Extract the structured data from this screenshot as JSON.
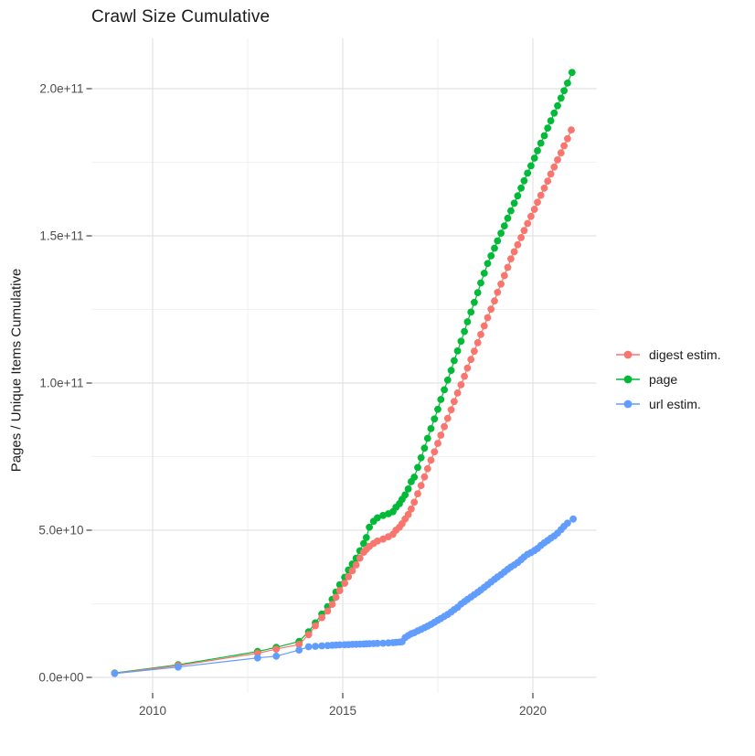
{
  "title": "Crawl Size Cumulative",
  "chart_data": {
    "type": "line",
    "title": "Crawl Size Cumulative",
    "xlabel": "",
    "ylabel": "Pages / Unique Items Cumulative",
    "x_unit": "year (decimal)",
    "y_unit": "count",
    "xlim": [
      2008.4,
      2021.7
    ],
    "ylim": [
      0,
      217000000000.0
    ],
    "grid": "major+minor",
    "legend_position": "right",
    "x_ticks": [
      {
        "value": 2010,
        "label": "2010"
      },
      {
        "value": 2015,
        "label": "2015"
      },
      {
        "value": 2020,
        "label": "2020"
      }
    ],
    "x_minor_ticks": [
      2012.5,
      2017.5
    ],
    "y_ticks": [
      {
        "value": 0,
        "label": "0.0e+00"
      },
      {
        "value": 50000000000.0,
        "label": "5.0e+10"
      },
      {
        "value": 100000000000.0,
        "label": "1.0e+11"
      },
      {
        "value": 150000000000.0,
        "label": "1.5e+11"
      },
      {
        "value": 200000000000.0,
        "label": "2.0e+11"
      }
    ],
    "y_minor_ticks": [
      25000000000.0,
      75000000000.0,
      125000000000.0,
      175000000000.0
    ],
    "series": [
      {
        "name": "digest estim.",
        "color": "#F8766D",
        "points": [
          [
            2009.0,
            1400000000.0
          ],
          [
            2010.67,
            4000000000.0
          ],
          [
            2012.76,
            8200000000.0
          ],
          [
            2013.25,
            9600000000.0
          ],
          [
            2013.85,
            11200000000.0
          ],
          [
            2014.1,
            14500000000.0
          ],
          [
            2014.28,
            17500000000.0
          ],
          [
            2014.45,
            20300000000.0
          ],
          [
            2014.6,
            22500000000.0
          ],
          [
            2014.72,
            24800000000.0
          ],
          [
            2014.82,
            27200000000.0
          ],
          [
            2014.92,
            29500000000.0
          ],
          [
            2015.05,
            32000000000.0
          ],
          [
            2015.15,
            34200000000.0
          ],
          [
            2015.25,
            36200000000.0
          ],
          [
            2015.35,
            38200000000.0
          ],
          [
            2015.45,
            40500000000.0
          ],
          [
            2015.55,
            42500000000.0
          ],
          [
            2015.62,
            43500000000.0
          ],
          [
            2015.7,
            44500000000.0
          ],
          [
            2015.81,
            45500000000.0
          ],
          [
            2015.91,
            46300000000.0
          ],
          [
            2016.06,
            47000000000.0
          ],
          [
            2016.2,
            47800000000.0
          ],
          [
            2016.32,
            48600000000.0
          ],
          [
            2016.4,
            50000000000.0
          ],
          [
            2016.49,
            51000000000.0
          ],
          [
            2016.56,
            52200000000.0
          ],
          [
            2016.64,
            53800000000.0
          ],
          [
            2016.72,
            55300000000.0
          ],
          [
            2016.8,
            57200000000.0
          ],
          [
            2016.88,
            59500000000.0
          ],
          [
            2016.97,
            62400000000.0
          ],
          [
            2017.06,
            65200000000.0
          ],
          [
            2017.15,
            68100000000.0
          ],
          [
            2017.23,
            70900000000.0
          ],
          [
            2017.32,
            73800000000.0
          ],
          [
            2017.41,
            76600000000.0
          ],
          [
            2017.5,
            79500000000.0
          ],
          [
            2017.58,
            82300000000.0
          ],
          [
            2017.67,
            85200000000.0
          ],
          [
            2017.76,
            88000000000.0
          ],
          [
            2017.85,
            90900000000.0
          ],
          [
            2017.93,
            93700000000.0
          ],
          [
            2018.02,
            96600000000.0
          ],
          [
            2018.11,
            99400000000.0
          ],
          [
            2018.2,
            102300000000.0
          ],
          [
            2018.28,
            105100000000.0
          ],
          [
            2018.37,
            108000000000.0
          ],
          [
            2018.46,
            110800000000.0
          ],
          [
            2018.55,
            113700000000.0
          ],
          [
            2018.63,
            116500000000.0
          ],
          [
            2018.72,
            119400000000.0
          ],
          [
            2018.81,
            122200000000.0
          ],
          [
            2018.9,
            125100000000.0
          ],
          [
            2018.99,
            127900000000.0
          ],
          [
            2019.07,
            130800000000.0
          ],
          [
            2019.16,
            133600000000.0
          ],
          [
            2019.25,
            136500000000.0
          ],
          [
            2019.34,
            139300000000.0
          ],
          [
            2019.42,
            142200000000.0
          ],
          [
            2019.51,
            144600000000.0
          ],
          [
            2019.6,
            147000000000.0
          ],
          [
            2019.69,
            149400000000.0
          ],
          [
            2019.77,
            151800000000.0
          ],
          [
            2019.86,
            154200000000.0
          ],
          [
            2019.95,
            156600000000.0
          ],
          [
            2020.04,
            159000000000.0
          ],
          [
            2020.12,
            161400000000.0
          ],
          [
            2020.21,
            163800000000.0
          ],
          [
            2020.3,
            166200000000.0
          ],
          [
            2020.39,
            168600000000.0
          ],
          [
            2020.47,
            171000000000.0
          ],
          [
            2020.56,
            173400000000.0
          ],
          [
            2020.65,
            175800000000.0
          ],
          [
            2020.74,
            178200000000.0
          ],
          [
            2020.82,
            180600000000.0
          ],
          [
            2020.91,
            183000000000.0
          ],
          [
            2021.01,
            186000000000.0
          ]
        ]
      },
      {
        "name": "page",
        "color": "#00BA38",
        "points": [
          [
            2009.0,
            1500000000.0
          ],
          [
            2010.67,
            4300000000.0
          ],
          [
            2012.76,
            8800000000.0
          ],
          [
            2013.25,
            10200000000.0
          ],
          [
            2013.85,
            12200000000.0
          ],
          [
            2014.1,
            15500000000.0
          ],
          [
            2014.28,
            18500000000.0
          ],
          [
            2014.45,
            21500000000.0
          ],
          [
            2014.6,
            24000000000.0
          ],
          [
            2014.72,
            26500000000.0
          ],
          [
            2014.82,
            29000000000.0
          ],
          [
            2014.92,
            31500000000.0
          ],
          [
            2015.05,
            34000000000.0
          ],
          [
            2015.15,
            36500000000.0
          ],
          [
            2015.25,
            38500000000.0
          ],
          [
            2015.35,
            40500000000.0
          ],
          [
            2015.45,
            43000000000.0
          ],
          [
            2015.55,
            45500000000.0
          ],
          [
            2015.62,
            47500000000.0
          ],
          [
            2015.7,
            51000000000.0
          ],
          [
            2015.81,
            53000000000.0
          ],
          [
            2015.91,
            54200000000.0
          ],
          [
            2016.06,
            55000000000.0
          ],
          [
            2016.2,
            55600000000.0
          ],
          [
            2016.32,
            56300000000.0
          ],
          [
            2016.4,
            57800000000.0
          ],
          [
            2016.49,
            59000000000.0
          ],
          [
            2016.56,
            60500000000.0
          ],
          [
            2016.64,
            62000000000.0
          ],
          [
            2016.72,
            64000000000.0
          ],
          [
            2016.8,
            66500000000.0
          ],
          [
            2016.88,
            68000000000.0
          ],
          [
            2016.97,
            71300000000.0
          ],
          [
            2017.06,
            74600000000.0
          ],
          [
            2017.15,
            77900000000.0
          ],
          [
            2017.23,
            81200000000.0
          ],
          [
            2017.32,
            84500000000.0
          ],
          [
            2017.41,
            87800000000.0
          ],
          [
            2017.5,
            91100000000.0
          ],
          [
            2017.58,
            94400000000.0
          ],
          [
            2017.67,
            97700000000.0
          ],
          [
            2017.76,
            101000000000.0
          ],
          [
            2017.85,
            104300000000.0
          ],
          [
            2017.93,
            107600000000.0
          ],
          [
            2018.02,
            110900000000.0
          ],
          [
            2018.11,
            114200000000.0
          ],
          [
            2018.2,
            117500000000.0
          ],
          [
            2018.28,
            120800000000.0
          ],
          [
            2018.37,
            124100000000.0
          ],
          [
            2018.46,
            127400000000.0
          ],
          [
            2018.55,
            130700000000.0
          ],
          [
            2018.63,
            134000000000.0
          ],
          [
            2018.72,
            137300000000.0
          ],
          [
            2018.81,
            140600000000.0
          ],
          [
            2018.9,
            143200000000.0
          ],
          [
            2018.99,
            145800000000.0
          ],
          [
            2019.07,
            148300000000.0
          ],
          [
            2019.16,
            150900000000.0
          ],
          [
            2019.25,
            153400000000.0
          ],
          [
            2019.34,
            156000000000.0
          ],
          [
            2019.42,
            158500000000.0
          ],
          [
            2019.51,
            161100000000.0
          ],
          [
            2019.6,
            163600000000.0
          ],
          [
            2019.69,
            166200000000.0
          ],
          [
            2019.77,
            168700000000.0
          ],
          [
            2019.86,
            171300000000.0
          ],
          [
            2019.95,
            173800000000.0
          ],
          [
            2020.04,
            176400000000.0
          ],
          [
            2020.12,
            178900000000.0
          ],
          [
            2020.21,
            181500000000.0
          ],
          [
            2020.3,
            184000000000.0
          ],
          [
            2020.39,
            186600000000.0
          ],
          [
            2020.47,
            189100000000.0
          ],
          [
            2020.56,
            191700000000.0
          ],
          [
            2020.65,
            194200000000.0
          ],
          [
            2020.74,
            196800000000.0
          ],
          [
            2020.82,
            199300000000.0
          ],
          [
            2020.91,
            201900000000.0
          ],
          [
            2021.03,
            205500000000.0
          ]
        ]
      },
      {
        "name": "url estim.",
        "color": "#619CFF",
        "points": [
          [
            2009.0,
            1300000000.0
          ],
          [
            2010.67,
            3500000000.0
          ],
          [
            2012.76,
            6600000000.0
          ],
          [
            2013.25,
            7200000000.0
          ],
          [
            2013.85,
            9300000000.0
          ],
          [
            2014.1,
            10400000000.0
          ],
          [
            2014.28,
            10550000000.0
          ],
          [
            2014.45,
            10700000000.0
          ],
          [
            2014.6,
            10800000000.0
          ],
          [
            2014.72,
            10900000000.0
          ],
          [
            2014.82,
            11000000000.0
          ],
          [
            2014.92,
            11050000000.0
          ],
          [
            2015.05,
            11100000000.0
          ],
          [
            2015.15,
            11150000000.0
          ],
          [
            2015.25,
            11200000000.0
          ],
          [
            2015.35,
            11250000000.0
          ],
          [
            2015.45,
            11300000000.0
          ],
          [
            2015.55,
            11350000000.0
          ],
          [
            2015.62,
            11400000000.0
          ],
          [
            2015.7,
            11450000000.0
          ],
          [
            2015.81,
            11500000000.0
          ],
          [
            2015.91,
            11550000000.0
          ],
          [
            2016.06,
            11600000000.0
          ],
          [
            2016.2,
            11700000000.0
          ],
          [
            2016.32,
            11800000000.0
          ],
          [
            2016.4,
            11900000000.0
          ],
          [
            2016.49,
            12000000000.0
          ],
          [
            2016.56,
            12100000000.0
          ],
          [
            2016.64,
            13500000000.0
          ],
          [
            2016.72,
            14200000000.0
          ],
          [
            2016.8,
            14800000000.0
          ],
          [
            2016.88,
            15200000000.0
          ],
          [
            2016.97,
            15800000000.0
          ],
          [
            2017.06,
            16300000000.0
          ],
          [
            2017.15,
            16900000000.0
          ],
          [
            2017.23,
            17400000000.0
          ],
          [
            2017.32,
            18000000000.0
          ],
          [
            2017.41,
            18700000000.0
          ],
          [
            2017.5,
            19400000000.0
          ],
          [
            2017.58,
            20000000000.0
          ],
          [
            2017.67,
            20700000000.0
          ],
          [
            2017.76,
            21400000000.0
          ],
          [
            2017.85,
            22200000000.0
          ],
          [
            2017.93,
            23000000000.0
          ],
          [
            2018.02,
            23800000000.0
          ],
          [
            2018.11,
            24900000000.0
          ],
          [
            2018.2,
            25700000000.0
          ],
          [
            2018.28,
            26500000000.0
          ],
          [
            2018.37,
            27300000000.0
          ],
          [
            2018.46,
            28100000000.0
          ],
          [
            2018.55,
            28900000000.0
          ],
          [
            2018.63,
            29700000000.0
          ],
          [
            2018.72,
            30600000000.0
          ],
          [
            2018.81,
            31500000000.0
          ],
          [
            2018.9,
            32400000000.0
          ],
          [
            2018.99,
            33300000000.0
          ],
          [
            2019.07,
            34100000000.0
          ],
          [
            2019.16,
            34900000000.0
          ],
          [
            2019.25,
            35800000000.0
          ],
          [
            2019.34,
            36700000000.0
          ],
          [
            2019.42,
            37500000000.0
          ],
          [
            2019.51,
            38200000000.0
          ],
          [
            2019.6,
            39000000000.0
          ],
          [
            2019.69,
            40000000000.0
          ],
          [
            2019.77,
            40900000000.0
          ],
          [
            2019.86,
            41800000000.0
          ],
          [
            2019.95,
            42400000000.0
          ],
          [
            2020.04,
            43100000000.0
          ],
          [
            2020.12,
            43800000000.0
          ],
          [
            2020.21,
            44800000000.0
          ],
          [
            2020.3,
            45700000000.0
          ],
          [
            2020.39,
            46500000000.0
          ],
          [
            2020.47,
            47300000000.0
          ],
          [
            2020.56,
            48000000000.0
          ],
          [
            2020.65,
            49000000000.0
          ],
          [
            2020.74,
            50200000000.0
          ],
          [
            2020.82,
            51300000000.0
          ],
          [
            2020.91,
            52400000000.0
          ],
          [
            2021.06,
            53800000000.0
          ]
        ]
      }
    ],
    "style": {
      "grid_major_color": "#E2E2E2",
      "grid_minor_color": "#ECECEC",
      "tick_color": "#333333",
      "tick_label_color": "#4D4D4D",
      "background": "#FFFFFF"
    }
  }
}
